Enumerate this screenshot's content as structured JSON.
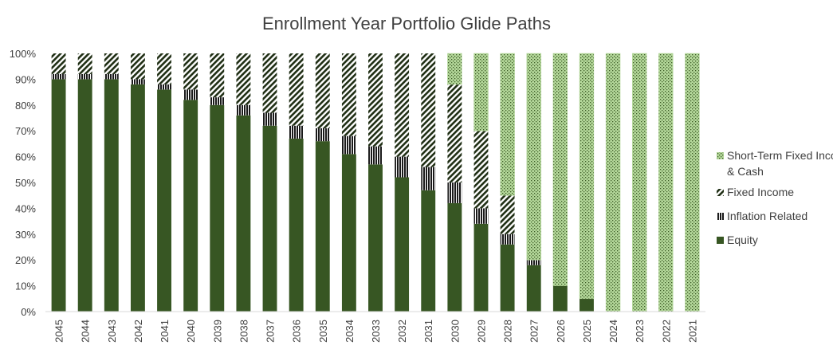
{
  "chart_data": {
    "type": "bar",
    "stacked": true,
    "title": "Enrollment Year Portfolio Glide Paths",
    "xlabel": "",
    "ylabel": "",
    "ylim": [
      0,
      100
    ],
    "y_ticks": [
      "0%",
      "10%",
      "20%",
      "30%",
      "40%",
      "50%",
      "60%",
      "70%",
      "80%",
      "90%",
      "100%"
    ],
    "legend_position": "right",
    "grid": false,
    "categories": [
      "2045",
      "2044",
      "2043",
      "2042",
      "2041",
      "2040",
      "2039",
      "2038",
      "2037",
      "2036",
      "2035",
      "2034",
      "2033",
      "2032",
      "2031",
      "2030",
      "2029",
      "2028",
      "2027",
      "2026",
      "2025",
      "2024",
      "2023",
      "2022",
      "2021"
    ],
    "series": [
      {
        "name": "Equity",
        "color": "#375623",
        "values": [
          90,
          90,
          90,
          88,
          86,
          82,
          80,
          76,
          72,
          67,
          66,
          61,
          57,
          52,
          47,
          42,
          34,
          26,
          18,
          10,
          5,
          0,
          0,
          0,
          0
        ]
      },
      {
        "name": "Inflation Related",
        "color": "#375623",
        "values": [
          2,
          2,
          2,
          2,
          2,
          4,
          3,
          4,
          5,
          5,
          5,
          7,
          7,
          8,
          9,
          8,
          6,
          4,
          2,
          0,
          0,
          0,
          0,
          0,
          0
        ]
      },
      {
        "name": "Fixed Income",
        "color": "#375623",
        "values": [
          8,
          8,
          8,
          10,
          12,
          14,
          17,
          20,
          23,
          28,
          29,
          32,
          36,
          40,
          44,
          38,
          30,
          15,
          0,
          0,
          0,
          0,
          0,
          0,
          0
        ]
      },
      {
        "name": "Short-Term Fixed Income & Cash",
        "color": "#a9d08e",
        "values": [
          0,
          0,
          0,
          0,
          0,
          0,
          0,
          0,
          0,
          0,
          0,
          0,
          0,
          0,
          0,
          12,
          30,
          55,
          80,
          90,
          95,
          100,
          100,
          100,
          100
        ]
      }
    ]
  }
}
